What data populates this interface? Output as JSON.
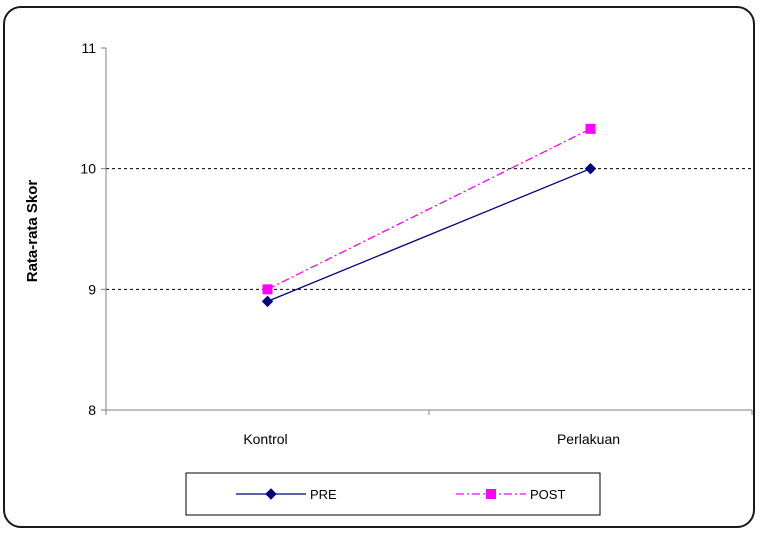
{
  "chart_data": {
    "type": "line",
    "categories": [
      "Kontrol",
      "Perlakuan"
    ],
    "series": [
      {
        "name": "PRE",
        "values": [
          8.9,
          10.0
        ],
        "color": "#000080",
        "marker": "diamond",
        "line": "solid"
      },
      {
        "name": "POST",
        "values": [
          9.0,
          10.33
        ],
        "color": "#ff00ff",
        "marker": "square",
        "line": "dash-dot"
      }
    ],
    "ylabel": "Rata-rata Skor",
    "xlabel": "",
    "ylim": [
      8,
      11
    ],
    "yticks": [
      "8",
      "9",
      "10",
      "11"
    ],
    "gridlines": [
      9,
      10
    ],
    "legend": "bottom"
  }
}
